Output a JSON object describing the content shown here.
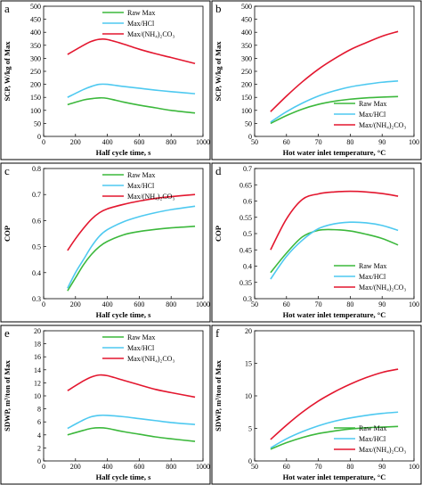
{
  "colors": {
    "raw": "#3cb83c",
    "hcl": "#4ec9f0",
    "nh4": "#e3172f"
  },
  "legend_labels": [
    "Raw Max",
    "Max/HCl",
    "Max/(NH₄)₂CO₃"
  ],
  "chart_data": [
    {
      "panel": "a",
      "type": "line",
      "xlabel": "Half cycle time, s",
      "ylabel": "SCP, W/kg of Max",
      "xlim": [
        0,
        1000
      ],
      "ylim": [
        0,
        500
      ],
      "xticks": [
        0,
        200,
        400,
        600,
        800,
        1000
      ],
      "yticks": [
        0,
        50,
        100,
        150,
        200,
        250,
        300,
        350,
        400,
        450,
        500
      ],
      "legend": "top-right",
      "series": [
        {
          "name": "Raw Max",
          "color": "#3cb83c",
          "x": [
            150,
            250,
            300,
            350,
            400,
            500,
            600,
            700,
            800,
            950
          ],
          "y": [
            122,
            140,
            145,
            148,
            146,
            132,
            120,
            110,
            100,
            90
          ]
        },
        {
          "name": "Max/HCl",
          "color": "#4ec9f0",
          "x": [
            150,
            250,
            300,
            350,
            400,
            500,
            600,
            700,
            800,
            950
          ],
          "y": [
            150,
            180,
            192,
            200,
            200,
            192,
            185,
            178,
            172,
            164
          ]
        },
        {
          "name": "Max/(NH₄)₂CO₃",
          "color": "#e3172f",
          "x": [
            150,
            250,
            300,
            350,
            400,
            500,
            600,
            700,
            800,
            950
          ],
          "y": [
            315,
            350,
            365,
            373,
            372,
            355,
            335,
            318,
            303,
            280
          ]
        }
      ]
    },
    {
      "panel": "b",
      "type": "line",
      "xlabel": "Hot water inlet temperature, °C",
      "ylabel": "SCP, W/kg of Max",
      "xlim": [
        50,
        100
      ],
      "ylim": [
        0,
        500
      ],
      "xticks": [
        50,
        60,
        70,
        80,
        90,
        100
      ],
      "yticks": [
        0,
        50,
        100,
        150,
        200,
        250,
        300,
        350,
        400,
        450,
        500
      ],
      "legend": "bottom-right",
      "series": [
        {
          "name": "Raw Max",
          "color": "#3cb83c",
          "x": [
            55,
            60,
            65,
            70,
            75,
            80,
            85,
            90,
            95
          ],
          "y": [
            50,
            80,
            105,
            123,
            135,
            143,
            148,
            151,
            153
          ]
        },
        {
          "name": "Max/HCl",
          "color": "#4ec9f0",
          "x": [
            55,
            60,
            65,
            70,
            75,
            80,
            85,
            90,
            95
          ],
          "y": [
            55,
            95,
            128,
            155,
            175,
            190,
            200,
            208,
            213
          ]
        },
        {
          "name": "Max/(NH₄)₂CO₃",
          "color": "#e3172f",
          "x": [
            55,
            60,
            65,
            70,
            75,
            80,
            85,
            90,
            95
          ],
          "y": [
            95,
            155,
            210,
            258,
            298,
            333,
            360,
            385,
            403
          ]
        }
      ]
    },
    {
      "panel": "c",
      "type": "line",
      "xlabel": "Half cycle time, s",
      "ylabel": "COP",
      "xlim": [
        0,
        1000
      ],
      "ylim": [
        0.3,
        0.8
      ],
      "xticks": [
        0,
        200,
        400,
        600,
        800,
        1000
      ],
      "yticks": [
        0.3,
        0.4,
        0.5,
        0.6,
        0.7,
        0.8
      ],
      "legend": "top-right",
      "series": [
        {
          "name": "Raw Max",
          "color": "#3cb83c",
          "x": [
            150,
            200,
            250,
            300,
            350,
            400,
            500,
            600,
            700,
            800,
            950
          ],
          "y": [
            0.33,
            0.38,
            0.43,
            0.47,
            0.5,
            0.52,
            0.545,
            0.558,
            0.566,
            0.572,
            0.578
          ]
        },
        {
          "name": "Max/HCl",
          "color": "#4ec9f0",
          "x": [
            150,
            200,
            250,
            300,
            350,
            400,
            500,
            600,
            700,
            800,
            950
          ],
          "y": [
            0.34,
            0.4,
            0.45,
            0.5,
            0.54,
            0.565,
            0.595,
            0.615,
            0.63,
            0.642,
            0.655
          ]
        },
        {
          "name": "Max/(NH₄)₂CO₃",
          "color": "#e3172f",
          "x": [
            150,
            200,
            250,
            300,
            350,
            400,
            500,
            600,
            700,
            800,
            950
          ],
          "y": [
            0.485,
            0.53,
            0.57,
            0.605,
            0.63,
            0.645,
            0.662,
            0.675,
            0.685,
            0.692,
            0.7
          ]
        }
      ]
    },
    {
      "panel": "d",
      "type": "line",
      "xlabel": "Hot water inlet temperature, °C",
      "ylabel": "COP",
      "xlim": [
        50,
        100
      ],
      "ylim": [
        0.3,
        0.7
      ],
      "xticks": [
        50,
        60,
        70,
        80,
        90,
        100
      ],
      "yticks": [
        0.3,
        0.35,
        0.4,
        0.45,
        0.5,
        0.55,
        0.6,
        0.65,
        0.7
      ],
      "legend": "bottom-right",
      "series": [
        {
          "name": "Raw Max",
          "color": "#3cb83c",
          "x": [
            55,
            60,
            65,
            70,
            75,
            80,
            85,
            90,
            95
          ],
          "y": [
            0.38,
            0.44,
            0.49,
            0.51,
            0.512,
            0.508,
            0.498,
            0.485,
            0.465
          ]
        },
        {
          "name": "Max/HCl",
          "color": "#4ec9f0",
          "x": [
            55,
            60,
            65,
            70,
            75,
            80,
            85,
            90,
            95
          ],
          "y": [
            0.36,
            0.43,
            0.48,
            0.515,
            0.53,
            0.535,
            0.533,
            0.525,
            0.51
          ]
        },
        {
          "name": "Max/(NH₄)₂CO₃",
          "color": "#e3172f",
          "x": [
            55,
            60,
            65,
            70,
            75,
            80,
            85,
            90,
            95
          ],
          "y": [
            0.45,
            0.545,
            0.605,
            0.622,
            0.628,
            0.63,
            0.628,
            0.623,
            0.615
          ]
        }
      ]
    },
    {
      "panel": "e",
      "type": "line",
      "xlabel": "Half cycle time, s",
      "ylabel": "SDWP, m³/ton of Max",
      "xlim": [
        0,
        1000
      ],
      "ylim": [
        0,
        20
      ],
      "xticks": [
        0,
        200,
        400,
        600,
        800,
        1000
      ],
      "yticks": [
        0,
        2,
        4,
        6,
        8,
        10,
        12,
        14,
        16,
        18,
        20
      ],
      "legend": "top-right",
      "series": [
        {
          "name": "Raw Max",
          "color": "#3cb83c",
          "x": [
            150,
            250,
            300,
            350,
            400,
            500,
            600,
            700,
            800,
            950
          ],
          "y": [
            4.0,
            4.7,
            5.0,
            5.1,
            5.0,
            4.5,
            4.1,
            3.7,
            3.4,
            3.0
          ]
        },
        {
          "name": "Max/HCl",
          "color": "#4ec9f0",
          "x": [
            150,
            250,
            300,
            350,
            400,
            500,
            600,
            700,
            800,
            950
          ],
          "y": [
            5.0,
            6.3,
            6.8,
            7.0,
            7.0,
            6.8,
            6.5,
            6.2,
            5.9,
            5.6
          ]
        },
        {
          "name": "Max/(NH₄)₂CO₃",
          "color": "#e3172f",
          "x": [
            150,
            250,
            300,
            350,
            400,
            500,
            600,
            700,
            800,
            950
          ],
          "y": [
            10.8,
            12.3,
            12.9,
            13.2,
            13.1,
            12.4,
            11.7,
            11.0,
            10.5,
            9.8
          ]
        }
      ]
    },
    {
      "panel": "f",
      "type": "line",
      "xlabel": "Hot water inlet temperature, °C",
      "ylabel": "SDWP, m³/ton of Max",
      "xlim": [
        50,
        100
      ],
      "ylim": [
        0,
        20
      ],
      "xticks": [
        50,
        60,
        70,
        80,
        90,
        100
      ],
      "yticks": [
        0,
        5,
        10,
        15,
        20
      ],
      "legend": "bottom-right",
      "series": [
        {
          "name": "Raw Max",
          "color": "#3cb83c",
          "x": [
            55,
            60,
            65,
            70,
            75,
            80,
            85,
            90,
            95
          ],
          "y": [
            1.8,
            2.8,
            3.6,
            4.2,
            4.6,
            4.9,
            5.1,
            5.2,
            5.3
          ]
        },
        {
          "name": "Max/HCl",
          "color": "#4ec9f0",
          "x": [
            55,
            60,
            65,
            70,
            75,
            80,
            85,
            90,
            95
          ],
          "y": [
            2.0,
            3.4,
            4.5,
            5.4,
            6.1,
            6.6,
            7.0,
            7.3,
            7.5
          ]
        },
        {
          "name": "Max/(NH₄)₂CO₃",
          "color": "#e3172f",
          "x": [
            55,
            60,
            65,
            70,
            75,
            80,
            85,
            90,
            95
          ],
          "y": [
            3.3,
            5.5,
            7.5,
            9.2,
            10.6,
            11.8,
            12.8,
            13.6,
            14.1
          ]
        }
      ]
    }
  ]
}
